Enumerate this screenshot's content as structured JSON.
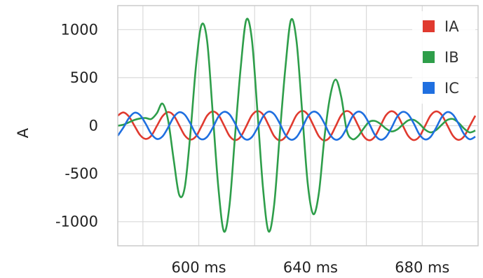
{
  "chart_data": {
    "type": "line",
    "ylabel": "A",
    "xlim": [
      571,
      700
    ],
    "ylim": [
      -1250,
      1250
    ],
    "x_ticks": [
      600,
      640,
      680
    ],
    "x_tick_labels": [
      "600 ms",
      "640 ms",
      "680 ms"
    ],
    "x_gridlines": [
      580,
      600,
      620,
      640,
      660,
      680
    ],
    "y_ticks": [
      1000,
      500,
      0,
      -500,
      -1000
    ],
    "y_tick_labels": [
      "1000",
      "500",
      "0",
      "-500",
      "-1000"
    ],
    "grid": true,
    "legend_position": "top-right",
    "series": [
      {
        "name": "IA",
        "color": "#e03a2f",
        "x": [
          571,
          573,
          575,
          577,
          579,
          581,
          583,
          585,
          587,
          589,
          591,
          593,
          595,
          597,
          599,
          601,
          603,
          605,
          607,
          609,
          611,
          613,
          615,
          617,
          619,
          621,
          623,
          625,
          627,
          629,
          631,
          633,
          635,
          637,
          639,
          641,
          643,
          645,
          647,
          649,
          651,
          653,
          655,
          657,
          659,
          661,
          663,
          665,
          667,
          669,
          671,
          673,
          675,
          677,
          679,
          681,
          683,
          685,
          687,
          689,
          691,
          693,
          695,
          697,
          699
        ],
        "values": [
          105,
          138,
          95,
          -2,
          -98,
          -138,
          -105,
          -3,
          98,
          142,
          108,
          4,
          -102,
          -145,
          -111,
          -5,
          105,
          148,
          113,
          6,
          -107,
          -150,
          -115,
          -6,
          108,
          152,
          116,
          6,
          -109,
          -153,
          -117,
          -6,
          110,
          154,
          117,
          6,
          -110,
          -154,
          -117,
          -6,
          109,
          153,
          116,
          5,
          -109,
          -152,
          -115,
          -5,
          108,
          151,
          114,
          4,
          -107,
          -150,
          -113,
          -4,
          106,
          149,
          112,
          3,
          -105,
          -148,
          -111,
          -3,
          104
        ]
      },
      {
        "name": "IB",
        "color": "#2e9e4a",
        "x": [
          571,
          573,
          575,
          577,
          579,
          581,
          583,
          585,
          587,
          589,
          591,
          593,
          595,
          597,
          599,
          601,
          603,
          605,
          607,
          609,
          611,
          613,
          615,
          617,
          619,
          621,
          623,
          625,
          627,
          629,
          631,
          633,
          635,
          637,
          639,
          641,
          643,
          645,
          647,
          649,
          651,
          653,
          655,
          657,
          659,
          661,
          663,
          665,
          667,
          669,
          671,
          673,
          675,
          677,
          679,
          681,
          683,
          685,
          687,
          689,
          691,
          693,
          695,
          697,
          699
        ],
        "values": [
          0,
          10,
          35,
          60,
          75,
          80,
          70,
          130,
          230,
          60,
          -350,
          -720,
          -640,
          -80,
          620,
          1050,
          880,
          130,
          -640,
          -1100,
          -830,
          -100,
          600,
          1100,
          900,
          150,
          -650,
          -1100,
          -820,
          -90,
          600,
          1100,
          880,
          150,
          -600,
          -920,
          -700,
          -120,
          300,
          480,
          300,
          -50,
          -140,
          -110,
          -30,
          40,
          50,
          20,
          -30,
          -60,
          -40,
          10,
          55,
          60,
          20,
          -40,
          -70,
          -45,
          10,
          60,
          70,
          30,
          -30,
          -70,
          -50
        ]
      },
      {
        "name": "IC",
        "color": "#1f6fe0",
        "x": [
          571,
          573,
          575,
          577,
          579,
          581,
          583,
          585,
          587,
          589,
          591,
          593,
          595,
          597,
          599,
          601,
          603,
          605,
          607,
          609,
          611,
          613,
          615,
          617,
          619,
          621,
          623,
          625,
          627,
          629,
          631,
          633,
          635,
          637,
          639,
          641,
          643,
          645,
          647,
          649,
          651,
          653,
          655,
          657,
          659,
          661,
          663,
          665,
          667,
          669,
          671,
          673,
          675,
          677,
          679,
          681,
          683,
          685,
          687,
          689,
          691,
          693,
          695,
          697,
          699
        ],
        "values": [
          -105,
          -20,
          80,
          135,
          110,
          20,
          -85,
          -138,
          -112,
          -20,
          88,
          140,
          114,
          22,
          -90,
          -142,
          -116,
          -22,
          92,
          144,
          118,
          23,
          -93,
          -145,
          -119,
          -23,
          94,
          146,
          119,
          23,
          -94,
          -146,
          -119,
          -23,
          94,
          146,
          119,
          23,
          -94,
          -146,
          -119,
          -23,
          94,
          146,
          119,
          23,
          -93,
          -145,
          -118,
          -22,
          92,
          144,
          117,
          22,
          -91,
          -143,
          -116,
          -21,
          90,
          142,
          115,
          21,
          -89,
          -141,
          -114
        ]
      }
    ]
  }
}
